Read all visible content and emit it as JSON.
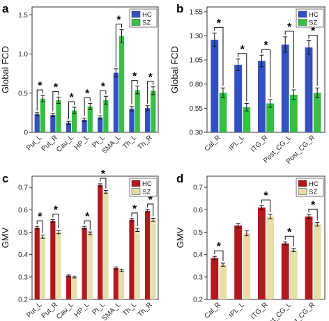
{
  "chart_data": [
    {
      "panel_label": "a",
      "type": "bar",
      "ylabel": "Global FCD",
      "xlabel": "",
      "ylim": [
        0,
        1.6
      ],
      "yticks": [
        0,
        0.5,
        1.0,
        1.5
      ],
      "ytick_labels": [
        "0",
        "0.5",
        "1.0",
        "1.5"
      ],
      "categories": [
        "Put_L",
        "Put_R",
        "Cau_L",
        "HP_L",
        "PI_L",
        "SMA_L",
        "Th_L",
        "Th_R"
      ],
      "series": [
        {
          "name": "HC",
          "color": "#3451c2",
          "values": [
            0.23,
            0.22,
            0.12,
            0.16,
            0.19,
            0.76,
            0.3,
            0.31
          ],
          "errors": [
            0.02,
            0.02,
            0.02,
            0.02,
            0.02,
            0.05,
            0.03,
            0.03
          ]
        },
        {
          "name": "SZ",
          "color": "#37c043",
          "values": [
            0.43,
            0.41,
            0.28,
            0.33,
            0.41,
            1.23,
            0.54,
            0.53
          ],
          "errors": [
            0.04,
            0.04,
            0.04,
            0.04,
            0.05,
            0.08,
            0.05,
            0.05
          ]
        }
      ],
      "significance": [
        "*",
        "*",
        "*",
        "*",
        "*",
        "*",
        "*",
        "*"
      ],
      "legend": "top-right",
      "grid": false
    },
    {
      "panel_label": "b",
      "type": "bar",
      "ylabel": "Global FCD",
      "xlabel": "",
      "ylim": [
        0.3,
        1.6
      ],
      "yticks": [
        0.3,
        0.55,
        0.8,
        1.05,
        1.3,
        1.55
      ],
      "ytick_labels": [
        "0.30",
        "0.55",
        "0.80",
        "1.05",
        "1.30",
        "1.55"
      ],
      "categories": [
        "Cal_R",
        "IPL_L",
        "ITG_R",
        "Post_CG_L",
        "Post_CG_R"
      ],
      "series": [
        {
          "name": "HC",
          "color": "#3451c2",
          "values": [
            1.26,
            1.0,
            1.04,
            1.21,
            1.18
          ],
          "errors": [
            0.07,
            0.06,
            0.06,
            0.08,
            0.07
          ]
        },
        {
          "name": "SZ",
          "color": "#37c043",
          "values": [
            0.71,
            0.56,
            0.6,
            0.69,
            0.71
          ],
          "errors": [
            0.05,
            0.04,
            0.04,
            0.05,
            0.05
          ]
        }
      ],
      "significance": [
        "*",
        "*",
        "*",
        "*",
        "*"
      ],
      "legend": "top-right",
      "grid": false
    },
    {
      "panel_label": "c",
      "type": "bar",
      "ylabel": "GMV",
      "xlabel": "",
      "ylim": [
        0.2,
        0.75
      ],
      "yticks": [
        0.2,
        0.3,
        0.4,
        0.5,
        0.6,
        0.7
      ],
      "ytick_labels": [
        "0.2",
        "0.3",
        "0.4",
        "0.5",
        "0.6",
        "0.7"
      ],
      "categories": [
        "Put_L",
        "Put_R",
        "Cau_L",
        "HP_L",
        "PI_L",
        "SMA_L",
        "Th_L",
        "Th_R"
      ],
      "series": [
        {
          "name": "HC",
          "color": "#b3181e",
          "values": [
            0.52,
            0.55,
            0.305,
            0.52,
            0.71,
            0.34,
            0.555,
            0.595
          ],
          "errors": [
            0.006,
            0.006,
            0.004,
            0.006,
            0.006,
            0.005,
            0.006,
            0.006
          ]
        },
        {
          "name": "SZ",
          "color": "#e5dfaa",
          "values": [
            0.48,
            0.5,
            0.3,
            0.495,
            0.68,
            0.33,
            0.51,
            0.555
          ],
          "errors": [
            0.007,
            0.007,
            0.004,
            0.006,
            0.006,
            0.005,
            0.007,
            0.007
          ]
        }
      ],
      "significance": [
        "*",
        "*",
        "",
        "*",
        "*",
        "",
        "*",
        "*"
      ],
      "legend": "top-right",
      "grid": false
    },
    {
      "panel_label": "d",
      "type": "bar",
      "ylabel": "GMV",
      "xlabel": "",
      "ylim": [
        0.2,
        0.75
      ],
      "yticks": [
        0.2,
        0.3,
        0.4,
        0.5,
        0.6,
        0.7
      ],
      "ytick_labels": [
        "0.2",
        "0.3",
        "0.4",
        "0.5",
        "0.6",
        "0.7"
      ],
      "categories": [
        "Cal_R",
        "IPL_L",
        "ITG_R",
        "Post_CG_L",
        "Post_CG_R"
      ],
      "series": [
        {
          "name": "HC",
          "color": "#b3181e",
          "values": [
            0.385,
            0.53,
            0.61,
            0.45,
            0.57
          ],
          "errors": [
            0.007,
            0.01,
            0.009,
            0.007,
            0.008
          ]
        },
        {
          "name": "SZ",
          "color": "#e5dfaa",
          "values": [
            0.355,
            0.495,
            0.57,
            0.42,
            0.535
          ],
          "errors": [
            0.007,
            0.011,
            0.01,
            0.007,
            0.008
          ]
        }
      ],
      "significance": [
        "*",
        "",
        "*",
        "*",
        "*"
      ],
      "legend": "top-right",
      "grid": false
    }
  ]
}
